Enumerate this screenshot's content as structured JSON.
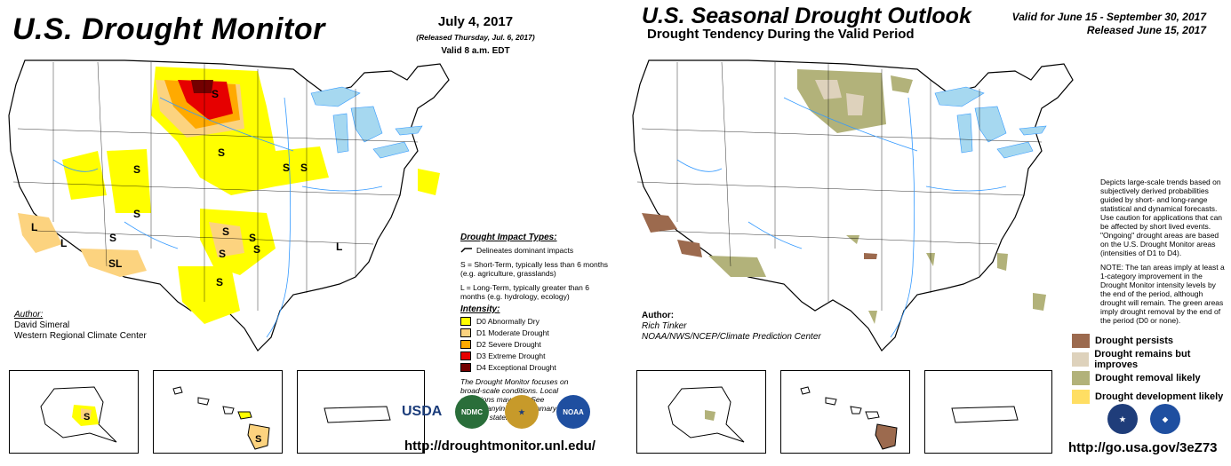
{
  "monitor": {
    "title": "U.S. Drought Monitor",
    "date": "July 4, 2017",
    "released": "(Released Thursday, Jul. 6, 2017)",
    "valid": "Valid 8 a.m. EDT",
    "impact_title": "Drought Impact Types:",
    "delineates": "Delineates dominant impacts",
    "short_term": "S = Short-Term, typically less than 6 months (e.g. agriculture, grasslands)",
    "long_term": "L = Long-Term, typically greater than 6 months (e.g. hydrology, ecology)",
    "intensity_title": "Intensity:",
    "intensity": [
      {
        "label": "D0 Abnormally Dry",
        "color": "#ffff00"
      },
      {
        "label": "D1 Moderate Drought",
        "color": "#fcd37f"
      },
      {
        "label": "D2 Severe Drought",
        "color": "#ffaa00"
      },
      {
        "label": "D3 Extreme Drought",
        "color": "#e60000"
      },
      {
        "label": "D4 Exceptional Drought",
        "color": "#730000"
      }
    ],
    "note": "The Drought Monitor focuses on broad-scale conditions. Local conditions may vary. See accompanying text summary for forecast statements.",
    "author_label": "Author:",
    "author_name": "David Simeral",
    "author_org": "Western Regional Climate Center",
    "url": "http://droughtmonitor.unl.edu/",
    "logos": {
      "usda": "USDA",
      "ndmc": "NDMC",
      "noaa": "NOAA"
    },
    "map_labels": {
      "s": "S",
      "l": "L",
      "sl": "SL"
    }
  },
  "outlook": {
    "title": "U.S. Seasonal Drought Outlook",
    "subtitle": "Drought Tendency During the Valid Period",
    "valid": "Valid for June 15 - September 30, 2017",
    "released": "Released June 15, 2017",
    "description": "Depicts large-scale trends based on subjectively derived probabilities guided by short- and long-range statistical and dynamical forecasts. Use caution for applications that can be affected by short lived events. \"Ongoing\" drought areas are based on the U.S. Drought Monitor areas (intensities of D1 to D4).",
    "note": "NOTE: The tan areas imply at least a 1-category improvement in the Drought Monitor intensity levels by the end of the period, although drought will remain. The green areas imply drought removal by the end of the period (D0 or none).",
    "author_label": "Author:",
    "author_name": "Rich Tinker",
    "author_org": "NOAA/NWS/NCEP/Climate Prediction Center",
    "legend": [
      {
        "label": "Drought persists",
        "color": "#9c6a4e"
      },
      {
        "label": "Drought remains but improves",
        "color": "#ded2bc"
      },
      {
        "label": "Drought removal likely",
        "color": "#b2b27a"
      },
      {
        "label": "Drought development likely",
        "color": "#ffde63"
      }
    ],
    "url": "http://go.usa.gov/3eZ73"
  },
  "colors": {
    "water": "#a6d8f0",
    "river": "#3399ff"
  }
}
